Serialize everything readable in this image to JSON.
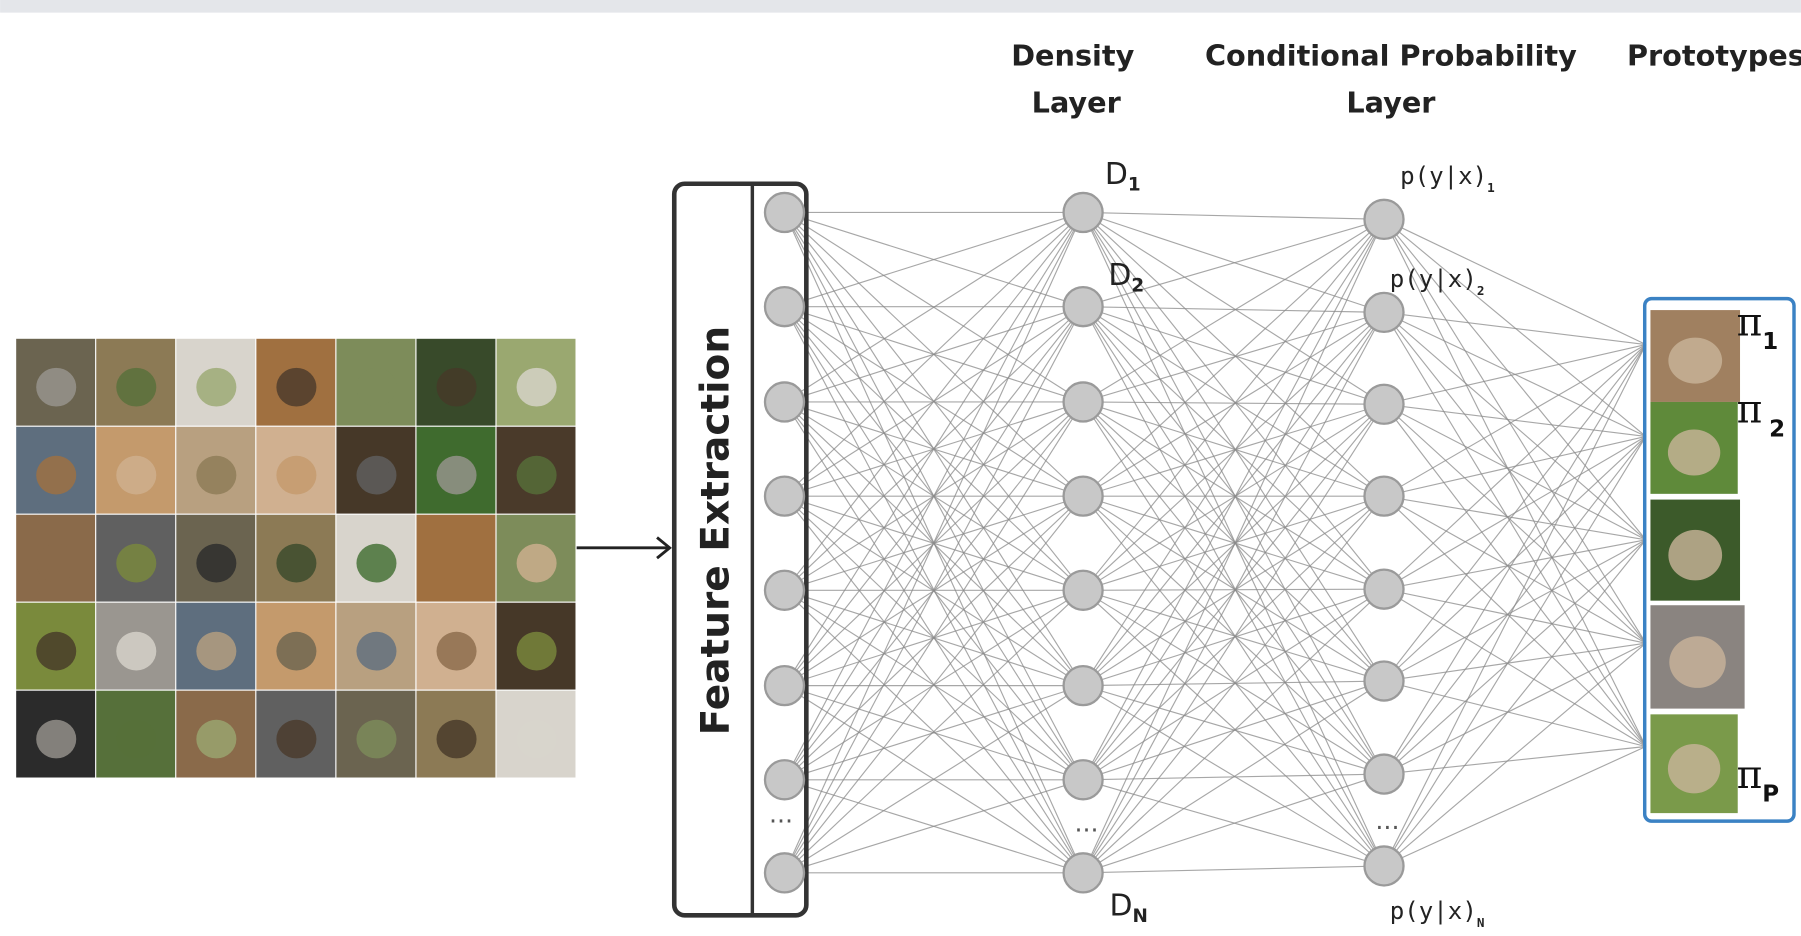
{
  "headers": {
    "density": [
      "Density",
      "Layer"
    ],
    "conditional": [
      "Conditional Probability",
      "Layer"
    ],
    "prototypes": "Prototypes"
  },
  "feature_extraction": "Feature Extraction",
  "density_labels": [
    {
      "base": "D",
      "sub": "1"
    },
    {
      "base": "D",
      "sub": "2"
    },
    {
      "base": "D",
      "sub": "N"
    }
  ],
  "conditional_labels": [
    {
      "base": "p(y|x)",
      "sub": "1"
    },
    {
      "base": "p(y|x)",
      "sub": "2"
    },
    {
      "base": "p(y|x)",
      "sub": "N"
    }
  ],
  "prototype_labels": [
    {
      "base": "π",
      "sub": "1"
    },
    {
      "base": "π",
      "sub": "2"
    },
    {
      "base": "π",
      "sub": "P"
    }
  ],
  "ellipsis": "..."
}
